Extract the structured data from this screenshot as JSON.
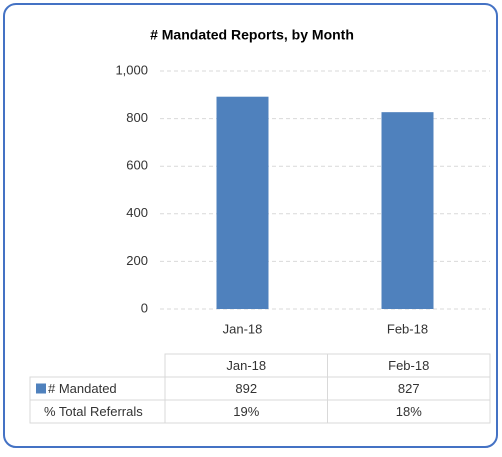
{
  "chart_data": {
    "type": "bar",
    "title": "# Mandated Reports, by Month",
    "categories": [
      "Jan-18",
      "Feb-18"
    ],
    "series": [
      {
        "name": "# Mandated",
        "color": "#4f81bd",
        "values": [
          892,
          827
        ]
      }
    ],
    "ylim": [
      0,
      1000
    ],
    "yticks": [
      0,
      200,
      400,
      600,
      800,
      {
        "value": 1000,
        "label": "1,000"
      }
    ],
    "grid": true,
    "data_table": {
      "rows": [
        {
          "name": "% Total Referrals",
          "values": [
            19,
            18
          ],
          "value_labels": [
            "19%",
            "18%"
          ]
        }
      ]
    }
  }
}
